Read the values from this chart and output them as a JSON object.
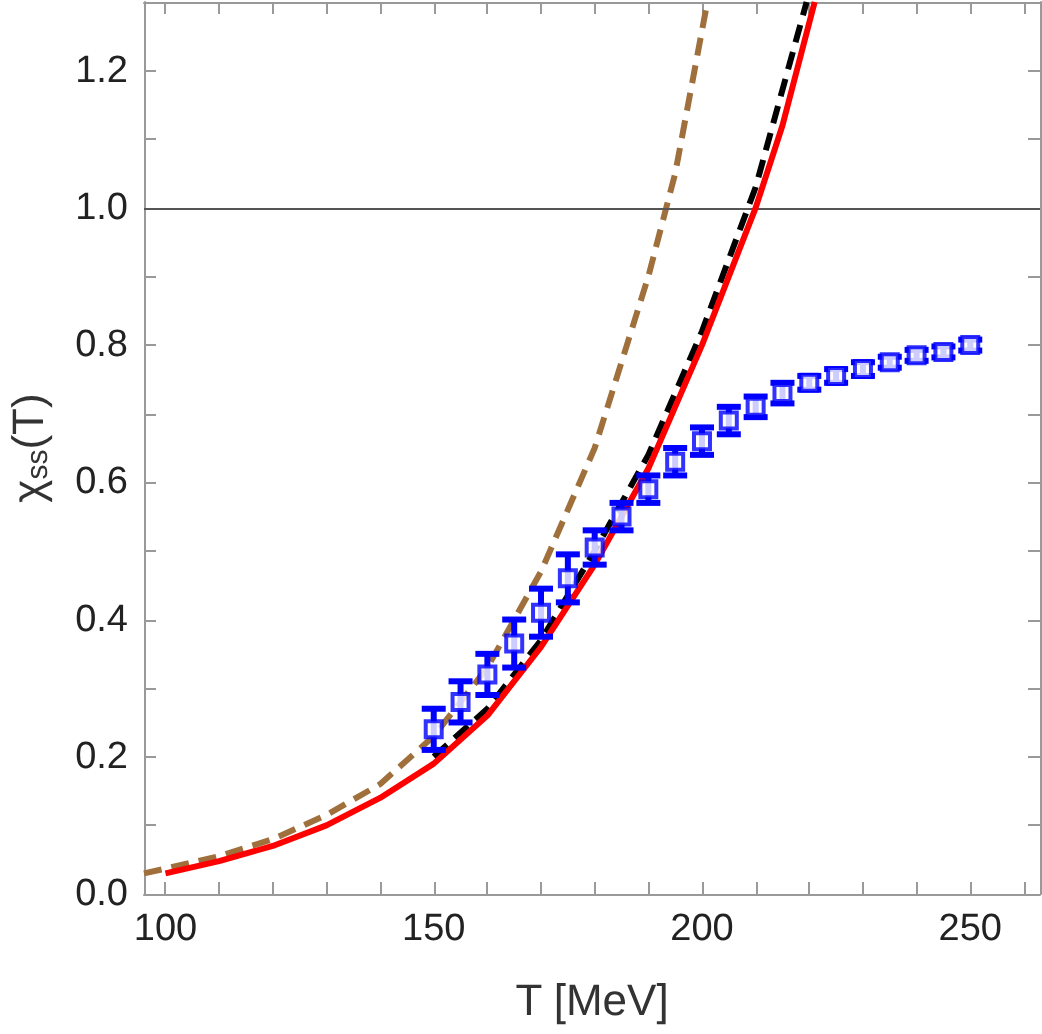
{
  "chart_data": {
    "type": "line",
    "xlabel": "T [MeV]",
    "ylabel": "χ$_{ss}$(T)",
    "xlim": [
      96,
      263
    ],
    "ylim": [
      0,
      1.3
    ],
    "xticks": [
      {
        "value": 100,
        "label": "100"
      },
      {
        "value": 110,
        "label": null
      },
      {
        "value": 120,
        "label": null
      },
      {
        "value": 130,
        "label": null
      },
      {
        "value": 140,
        "label": null
      },
      {
        "value": 150,
        "label": "150"
      },
      {
        "value": 160,
        "label": null
      },
      {
        "value": 170,
        "label": null
      },
      {
        "value": 180,
        "label": null
      },
      {
        "value": 190,
        "label": null
      },
      {
        "value": 200,
        "label": "200"
      },
      {
        "value": 210,
        "label": null
      },
      {
        "value": 220,
        "label": null
      },
      {
        "value": 230,
        "label": null
      },
      {
        "value": 240,
        "label": null
      },
      {
        "value": 250,
        "label": "250"
      },
      {
        "value": 260,
        "label": null
      }
    ],
    "yticks": [
      {
        "value": 0,
        "label": "0.0"
      },
      {
        "value": 0.1,
        "label": null
      },
      {
        "value": 0.2,
        "label": "0.2"
      },
      {
        "value": 0.3,
        "label": null
      },
      {
        "value": 0.4,
        "label": "0.4"
      },
      {
        "value": 0.5,
        "label": null
      },
      {
        "value": 0.6,
        "label": "0.6"
      },
      {
        "value": 0.7,
        "label": null
      },
      {
        "value": 0.8,
        "label": "0.8"
      },
      {
        "value": 0.9,
        "label": null
      },
      {
        "value": 1.0,
        "label": "1.0"
      },
      {
        "value": 1.1,
        "label": null
      },
      {
        "value": 1.2,
        "label": "1.2"
      }
    ],
    "grid": false,
    "ref_lines": [
      {
        "axis": "y",
        "value": 1.0,
        "color": "#555555"
      }
    ],
    "series": [
      {
        "color": "#a0703c",
        "line_style": "dashed",
        "marker": "none",
        "x": [
          96,
          100,
          110,
          120,
          130,
          140,
          150,
          160,
          170,
          180,
          190,
          195,
          201
        ],
        "values": [
          0.03,
          0.037,
          0.055,
          0.08,
          0.115,
          0.16,
          0.23,
          0.33,
          0.47,
          0.65,
          0.9,
          1.05,
          1.3
        ]
      },
      {
        "color": "#000000",
        "line_style": "dashed",
        "marker": "none",
        "x": [
          150,
          160,
          170,
          180,
          190,
          200,
          210,
          219.5
        ],
        "values": [
          0.2,
          0.27,
          0.37,
          0.5,
          0.64,
          0.82,
          1.03,
          1.3
        ]
      },
      {
        "color": "#ff0000",
        "line_style": "solid",
        "marker": "none",
        "x": [
          100,
          110,
          120,
          130,
          140,
          150,
          160,
          170,
          180,
          190,
          200,
          210,
          215,
          221
        ],
        "values": [
          0.03,
          0.048,
          0.07,
          0.1,
          0.14,
          0.19,
          0.26,
          0.36,
          0.48,
          0.62,
          0.8,
          1.0,
          1.12,
          1.3
        ]
      },
      {
        "type": "scatter",
        "color": "#0000ff",
        "marker": "square",
        "x": [
          150,
          155,
          160,
          165,
          170,
          175,
          180,
          185,
          190,
          195,
          200,
          205,
          210,
          215,
          220,
          225,
          230,
          235,
          240,
          245,
          250
        ],
        "values": [
          0.24,
          0.28,
          0.32,
          0.365,
          0.41,
          0.46,
          0.505,
          0.55,
          0.59,
          0.63,
          0.66,
          0.69,
          0.71,
          0.73,
          0.745,
          0.755,
          0.765,
          0.775,
          0.785,
          0.79,
          0.8
        ],
        "errors": [
          0.03,
          0.03,
          0.03,
          0.035,
          0.035,
          0.035,
          0.025,
          0.02,
          0.02,
          0.02,
          0.02,
          0.02,
          0.015,
          0.015,
          0.01,
          0.01,
          0.01,
          0.008,
          0.008,
          0.008,
          0.008
        ]
      }
    ]
  }
}
